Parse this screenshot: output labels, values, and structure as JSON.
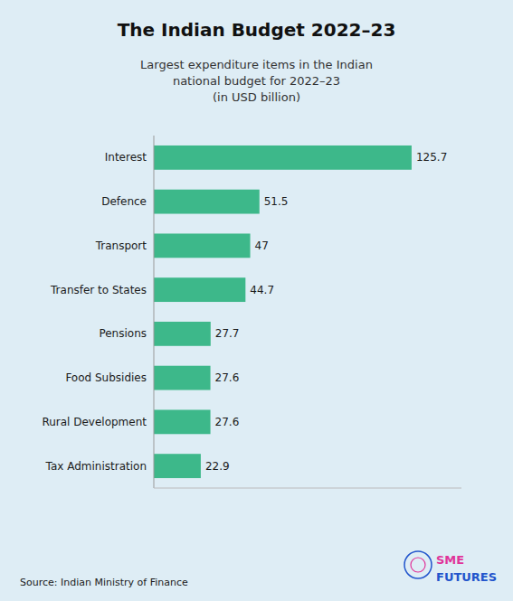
{
  "chart_data": {
    "type": "bar",
    "orientation": "horizontal",
    "title": "The Indian Budget 2022–23",
    "subtitle": [
      "Largest expenditure items in the Indian",
      "national budget for 2022–23",
      "(in USD billion)"
    ],
    "annotations": [
      "Source: Indian Ministry of Finance",
      "SME",
      "FUTURES"
    ],
    "categories": [
      "Interest",
      "Defence",
      "Transport",
      "Transfer to States",
      "Pensions",
      "Food Subsidies",
      "Rural Development",
      "Tax Administration"
    ],
    "values": [
      125.7,
      51.5,
      47.0,
      44.7,
      27.7,
      27.6,
      27.6,
      22.9
    ],
    "color": "#3db88a",
    "xlim": [
      0,
      150
    ],
    "xticks": [],
    "grid": false,
    "data_labels": true,
    "tick_labels": "y"
  }
}
